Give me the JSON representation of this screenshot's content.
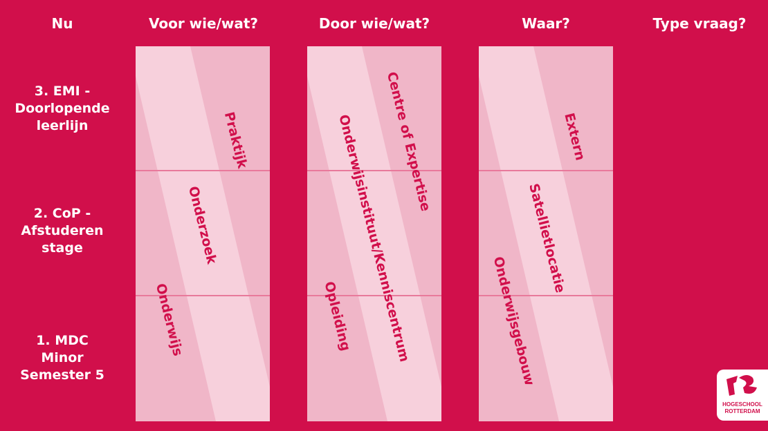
{
  "headers": [
    "Nu",
    "Voor wie/wat?",
    "Door wie/wat?",
    "Waar?",
    "Type vraag?"
  ],
  "rows": [
    {
      "lines": [
        "3. EMI -",
        "Doorlopende",
        "leerlijn"
      ]
    },
    {
      "lines": [
        "2. CoP -",
        "Afstuderen",
        "stage"
      ]
    },
    {
      "lines": [
        "1. MDC",
        "Minor",
        "Semester 5"
      ]
    }
  ],
  "columns": [
    {
      "labels": [
        "Praktijk",
        "Onderzoek",
        "Onderwijs"
      ]
    },
    {
      "labels": [
        "Centre of Expertise",
        "Onderwijsinstituut/Kenniscentrum",
        "Opleiding"
      ]
    },
    {
      "labels": [
        "Extern",
        "Satellietlocatie",
        "Onderwijsgebouw"
      ]
    }
  ],
  "logo": {
    "text_line1": "HOGESCHOOL",
    "text_line2": "ROTTERDAM"
  },
  "colors": {
    "background": "#D10F4B",
    "panel": "#F0B6C8",
    "band": "#F7D0DC",
    "divider": "#E8799B",
    "text": "#FFFFFF"
  }
}
